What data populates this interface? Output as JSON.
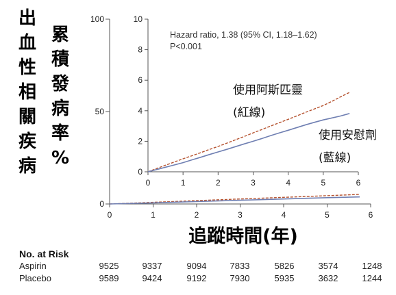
{
  "y_axis_label_col1": [
    "出",
    "血",
    "性",
    "相",
    "關",
    "疾",
    "病"
  ],
  "y_axis_label_col2": [
    "累",
    "積",
    "發",
    "病",
    "率",
    "%"
  ],
  "x_axis_label": "追蹤時間(年)",
  "colors": {
    "aspirin": "#b5522f",
    "placebo": "#6f7fb2",
    "axis": "#555555"
  },
  "chart_data": [
    {
      "type": "line",
      "xlabel": "追蹤時間(年)",
      "ylabel": "",
      "xlim": [
        0,
        6
      ],
      "ylim": [
        0,
        100
      ],
      "x_ticks": [
        0,
        1,
        2,
        3,
        4,
        5,
        6
      ],
      "y_ticks": [
        0,
        50,
        100
      ],
      "series": [
        {
          "name": "",
          "line": "dashed",
          "x": [
            0,
            1,
            2,
            3,
            4,
            5,
            5.75
          ],
          "values": [
            0,
            0.9,
            1.8,
            2.7,
            3.6,
            4.5,
            5.2
          ]
        },
        {
          "name": "",
          "line": "solid",
          "x": [
            0,
            1,
            2,
            3,
            4,
            5,
            5.75
          ],
          "values": [
            0,
            0.6,
            1.3,
            2.0,
            2.7,
            3.4,
            3.8
          ]
        }
      ]
    },
    {
      "type": "line",
      "role": "inset",
      "xlim": [
        0,
        6
      ],
      "ylim": [
        0,
        10
      ],
      "x_ticks": [
        0,
        1,
        2,
        3,
        4,
        5,
        6
      ],
      "y_ticks": [
        0,
        2,
        4,
        6,
        8,
        10
      ],
      "annotation_lines": [
        "Hazard ratio, 1.38 (95% CI, 1.18–1.62)",
        "P<0.001"
      ],
      "series": [
        {
          "name": "使用阿斯匹靈",
          "sublabel": "(紅線)",
          "line": "dashed",
          "x": [
            0,
            0.25,
            0.5,
            0.75,
            1,
            1.25,
            1.5,
            1.75,
            2,
            2.25,
            2.5,
            2.75,
            3,
            3.25,
            3.5,
            3.75,
            4,
            4.25,
            4.5,
            4.75,
            5,
            5.25,
            5.5,
            5.75
          ],
          "values": [
            0,
            0.22,
            0.43,
            0.64,
            0.85,
            1.05,
            1.25,
            1.46,
            1.66,
            1.88,
            2.1,
            2.32,
            2.55,
            2.77,
            3.0,
            3.22,
            3.44,
            3.67,
            3.9,
            4.12,
            4.34,
            4.62,
            4.92,
            5.2
          ]
        },
        {
          "name": "使用安慰劑",
          "sublabel": "(藍線)",
          "line": "solid",
          "x": [
            0,
            0.25,
            0.5,
            0.75,
            1,
            1.25,
            1.5,
            1.75,
            2,
            2.25,
            2.5,
            2.75,
            3,
            3.25,
            3.5,
            3.75,
            4,
            4.25,
            4.5,
            4.75,
            5,
            5.25,
            5.5,
            5.75
          ],
          "values": [
            0,
            0.15,
            0.3,
            0.45,
            0.6,
            0.78,
            0.95,
            1.13,
            1.3,
            1.47,
            1.65,
            1.83,
            2.0,
            2.18,
            2.37,
            2.55,
            2.72,
            2.9,
            3.08,
            3.24,
            3.4,
            3.53,
            3.66,
            3.82
          ]
        }
      ]
    }
  ],
  "risk_table": {
    "title": "No. at Risk",
    "rows": [
      {
        "label": "Aspirin",
        "values": [
          "9525",
          "9337",
          "9094",
          "7833",
          "5826",
          "3574",
          "1248"
        ]
      },
      {
        "label": "Placebo",
        "values": [
          "9589",
          "9424",
          "9192",
          "7930",
          "5935",
          "3632",
          "1244"
        ]
      }
    ]
  }
}
